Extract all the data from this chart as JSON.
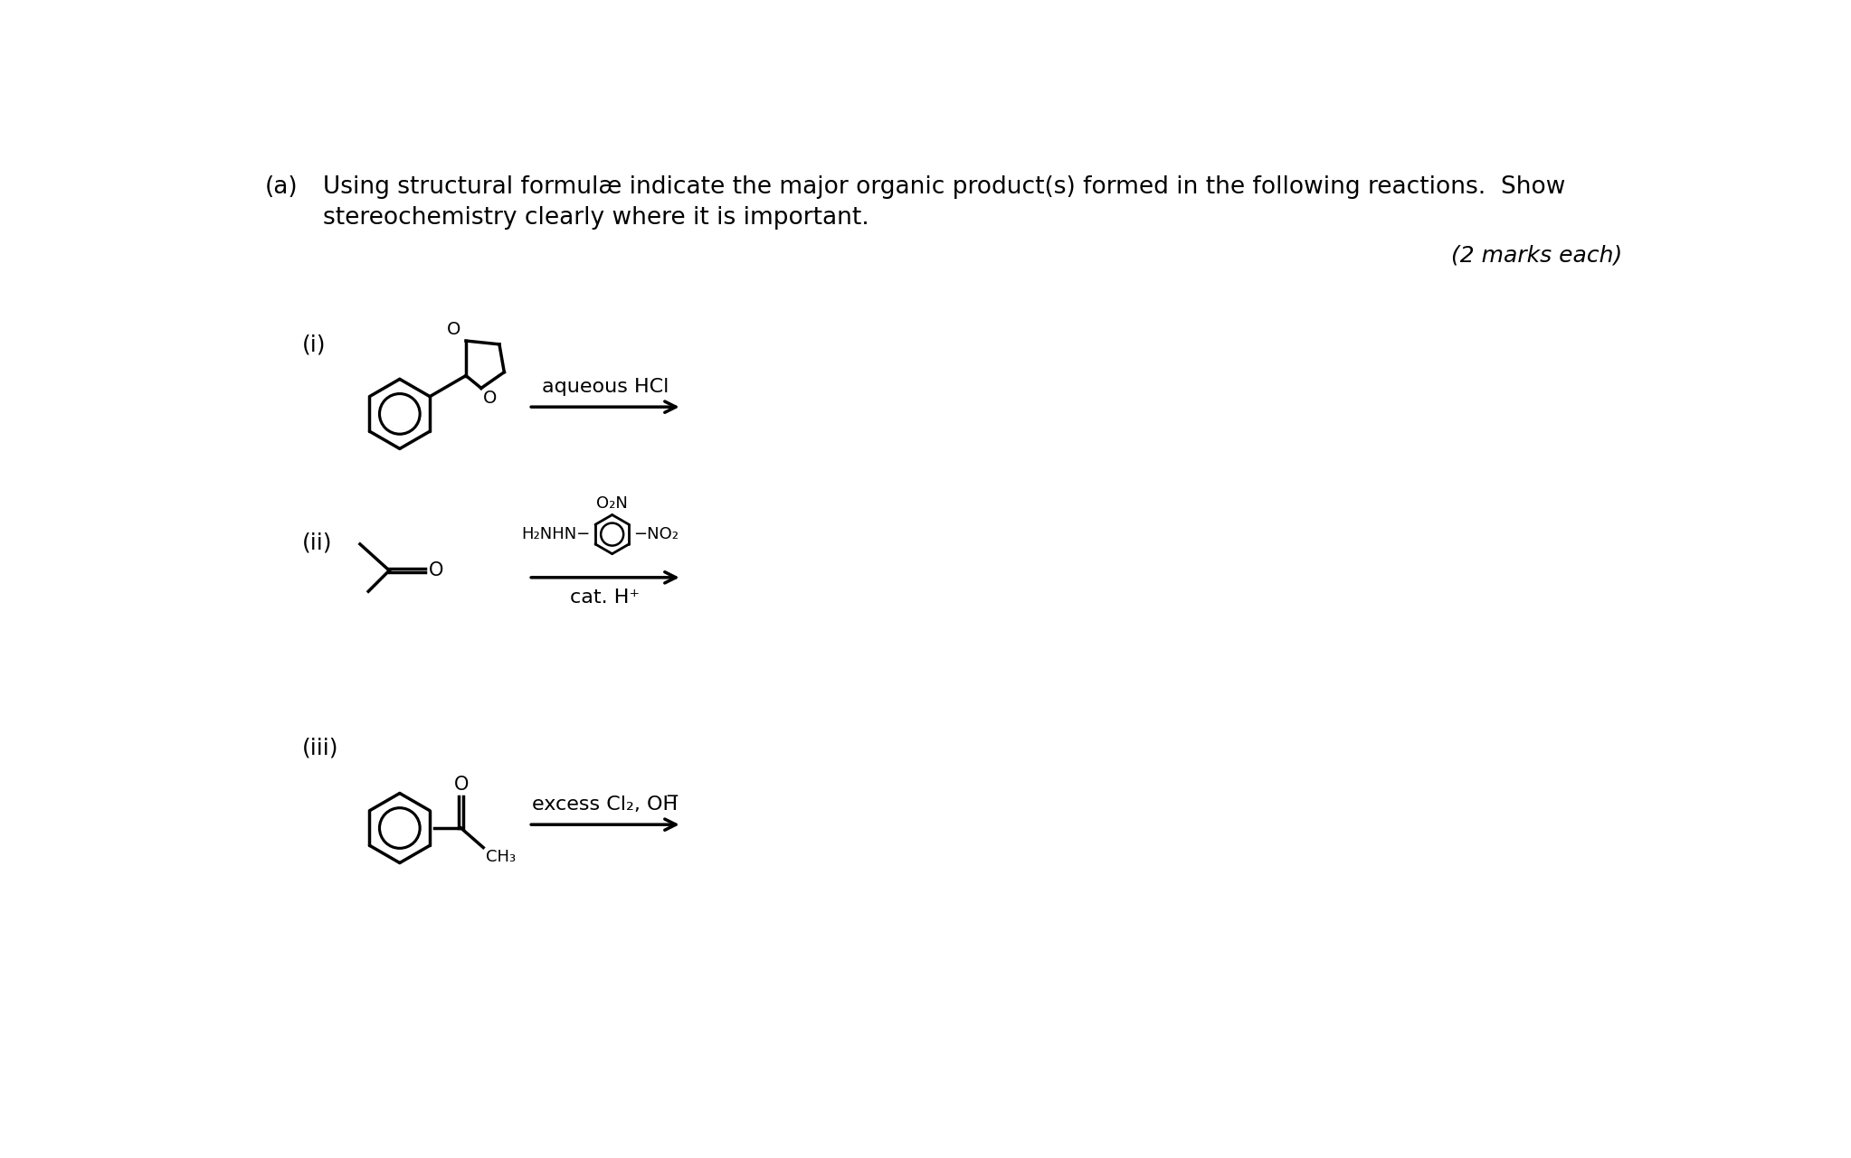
{
  "bg_color": "#ffffff",
  "text_color": "#000000",
  "title_a": "(a)",
  "line1": "Using structural formulæ indicate the major organic product(s) formed in the following reactions.  Show",
  "line2": "stereochemistry clearly where it is important.",
  "marks": "(2 marks each)",
  "label_i": "(i)",
  "label_ii": "(ii)",
  "label_iii": "(iii)",
  "reagent_i": "aqueous HCl",
  "reagent_ii_top": "O₂N",
  "reagent_ii_left": "H₂NHN",
  "reagent_ii_right": "−NO₂",
  "reagent_ii_bot": "cat. H⁺",
  "reagent_iii_line": "excess Cl₂, OH̅",
  "font_size_text": 19,
  "font_size_label": 18,
  "font_size_marks": 18,
  "font_size_reagent": 16,
  "font_size_struct": 15,
  "font_size_small": 13
}
